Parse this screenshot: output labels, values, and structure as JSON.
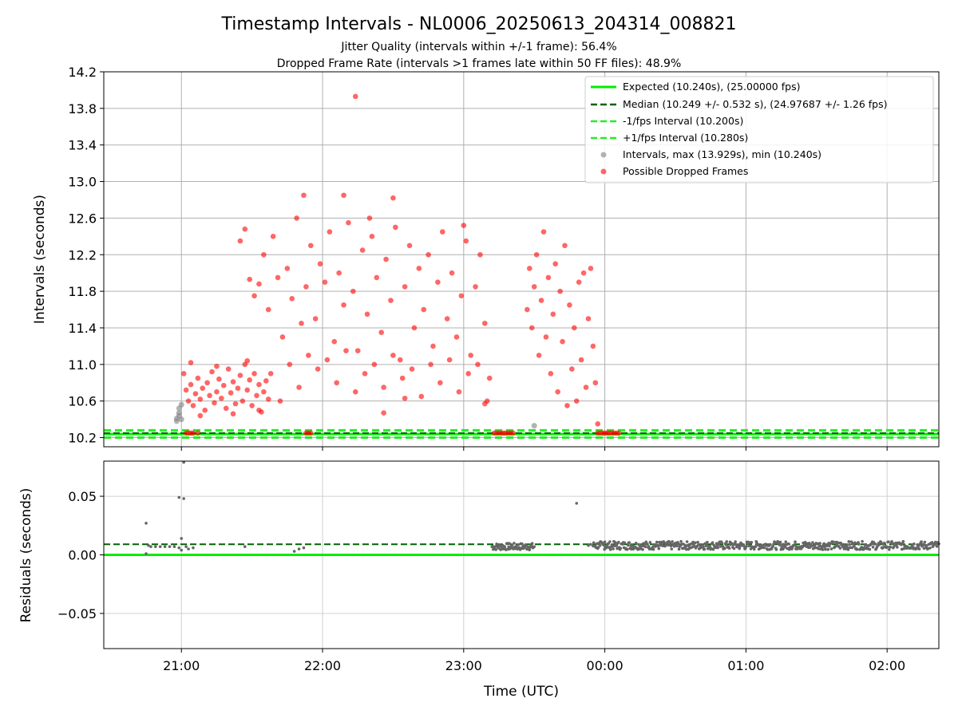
{
  "figure": {
    "title": "Timestamp Intervals - NL0006_20250613_204314_008821",
    "subtitle_1": "Jitter Quality (intervals within +/-1 frame): 56.4%",
    "subtitle_2": "Dropped Frame Rate (intervals >1 frames late within 50 FF files): 48.9%"
  },
  "colors": {
    "expected": "#00ee00",
    "median": "#006400",
    "interval_band": "#22ee22",
    "intervals_gray": "#808080",
    "dropped_red": "#ff0000",
    "grid": "#b0b0b0"
  },
  "chart_data": [
    {
      "type": "scatter",
      "panel": "top",
      "xlabel": "",
      "ylabel": "Intervals (seconds)",
      "x_unit": "time UTC (2025-06-13/14)",
      "xlim": [
        "20:27",
        "02:22"
      ],
      "ylim": [
        10.1,
        14.2
      ],
      "yticks": [
        "10.2",
        "10.6",
        "11.0",
        "11.4",
        "11.8",
        "12.2",
        "12.6",
        "13.0",
        "13.4",
        "13.8",
        "14.2"
      ],
      "grid": true,
      "legend_position": "top-right",
      "legend": [
        "Expected (10.240s), (25.00000 fps)",
        "Median (10.249 +/- 0.532 s), (24.97687 +/- 1.26 fps)",
        "-1/fps Interval (10.200s)",
        "+1/fps Interval (10.280s)",
        "Intervals, max (13.929s), min (10.240s)",
        "Possible Dropped Frames"
      ],
      "reference_lines": {
        "expected": 10.24,
        "median": 10.249,
        "minus_1_fps": 10.2,
        "plus_1_fps": 10.28
      },
      "summary": {
        "max_interval": 13.929,
        "min_interval": 10.24
      },
      "series": [
        {
          "name": "Intervals, max (13.929s), min (10.240s)",
          "points": [
            [
              "20:58",
              10.38
            ],
            [
              "20:58",
              10.41
            ],
            [
              "20:59",
              10.44
            ],
            [
              "20:59",
              10.47
            ],
            [
              "20:59",
              10.52
            ],
            [
              "21:00",
              10.56
            ],
            [
              "21:00",
              10.4
            ],
            [
              "23:30",
              10.33
            ]
          ]
        },
        {
          "name": "Possible Dropped Frames",
          "points": [
            [
              "21:01",
              10.9
            ],
            [
              "21:02",
              10.72
            ],
            [
              "21:03",
              10.6
            ],
            [
              "21:04",
              10.78
            ],
            [
              "21:05",
              10.55
            ],
            [
              "21:06",
              10.68
            ],
            [
              "21:07",
              10.85
            ],
            [
              "21:08",
              10.62
            ],
            [
              "21:09",
              10.74
            ],
            [
              "21:10",
              10.5
            ],
            [
              "21:11",
              10.8
            ],
            [
              "21:12",
              10.66
            ],
            [
              "21:13",
              10.92
            ],
            [
              "21:14",
              10.58
            ],
            [
              "21:15",
              10.7
            ],
            [
              "21:16",
              10.84
            ],
            [
              "21:17",
              10.63
            ],
            [
              "21:18",
              10.77
            ],
            [
              "21:19",
              10.52
            ],
            [
              "21:20",
              10.95
            ],
            [
              "21:21",
              10.69
            ],
            [
              "21:22",
              10.81
            ],
            [
              "21:23",
              10.57
            ],
            [
              "21:24",
              10.74
            ],
            [
              "21:25",
              10.88
            ],
            [
              "21:26",
              10.6
            ],
            [
              "21:27",
              11.0
            ],
            [
              "21:28",
              10.72
            ],
            [
              "21:29",
              10.83
            ],
            [
              "21:30",
              10.55
            ],
            [
              "21:31",
              10.9
            ],
            [
              "21:32",
              10.66
            ],
            [
              "21:33",
              10.78
            ],
            [
              "21:34",
              10.48
            ],
            [
              "21:35",
              10.7
            ],
            [
              "21:36",
              10.82
            ],
            [
              "21:37",
              10.62
            ],
            [
              "21:04",
              11.02
            ],
            [
              "21:08",
              10.44
            ],
            [
              "21:15",
              10.98
            ],
            [
              "21:22",
              10.46
            ],
            [
              "21:28",
              11.04
            ],
            [
              "21:33",
              10.5
            ],
            [
              "21:25",
              12.35
            ],
            [
              "21:27",
              12.48
            ],
            [
              "21:29",
              11.93
            ],
            [
              "21:31",
              11.75
            ],
            [
              "21:33",
              11.88
            ],
            [
              "21:35",
              12.2
            ],
            [
              "21:37",
              11.6
            ],
            [
              "21:39",
              12.4
            ],
            [
              "21:41",
              11.95
            ],
            [
              "21:43",
              11.3
            ],
            [
              "21:45",
              12.05
            ],
            [
              "21:47",
              11.72
            ],
            [
              "21:49",
              12.6
            ],
            [
              "21:51",
              11.45
            ],
            [
              "21:53",
              11.85
            ],
            [
              "21:55",
              12.3
            ],
            [
              "21:57",
              11.5
            ],
            [
              "21:59",
              12.1
            ],
            [
              "22:01",
              11.9
            ],
            [
              "22:03",
              12.45
            ],
            [
              "22:05",
              11.25
            ],
            [
              "22:07",
              12.0
            ],
            [
              "22:09",
              11.65
            ],
            [
              "22:11",
              12.55
            ],
            [
              "22:13",
              11.8
            ],
            [
              "22:15",
              11.15
            ],
            [
              "22:17",
              12.25
            ],
            [
              "22:19",
              11.55
            ],
            [
              "22:21",
              12.4
            ],
            [
              "22:23",
              11.95
            ],
            [
              "22:25",
              11.35
            ],
            [
              "22:27",
              12.15
            ],
            [
              "22:29",
              11.7
            ],
            [
              "22:31",
              12.5
            ],
            [
              "22:33",
              11.05
            ],
            [
              "22:35",
              11.85
            ],
            [
              "22:37",
              12.3
            ],
            [
              "22:39",
              11.4
            ],
            [
              "22:41",
              12.05
            ],
            [
              "22:43",
              11.6
            ],
            [
              "22:45",
              12.2
            ],
            [
              "22:47",
              11.2
            ],
            [
              "22:49",
              11.9
            ],
            [
              "22:51",
              12.45
            ],
            [
              "22:53",
              11.5
            ],
            [
              "22:55",
              12.0
            ],
            [
              "22:57",
              11.3
            ],
            [
              "22:59",
              11.75
            ],
            [
              "23:01",
              12.35
            ],
            [
              "23:03",
              11.1
            ],
            [
              "23:05",
              11.85
            ],
            [
              "23:07",
              12.2
            ],
            [
              "23:09",
              11.45
            ],
            [
              "23:11",
              10.85
            ],
            [
              "21:38",
              10.9
            ],
            [
              "21:42",
              10.6
            ],
            [
              "21:46",
              11.0
            ],
            [
              "21:50",
              10.75
            ],
            [
              "21:54",
              11.1
            ],
            [
              "21:58",
              10.95
            ],
            [
              "22:02",
              11.05
            ],
            [
              "22:06",
              10.8
            ],
            [
              "22:10",
              11.15
            ],
            [
              "22:14",
              10.7
            ],
            [
              "22:18",
              10.9
            ],
            [
              "22:22",
              11.0
            ],
            [
              "22:26",
              10.75
            ],
            [
              "22:30",
              11.1
            ],
            [
              "22:34",
              10.85
            ],
            [
              "22:38",
              10.95
            ],
            [
              "22:42",
              10.65
            ],
            [
              "22:46",
              11.0
            ],
            [
              "22:50",
              10.8
            ],
            [
              "22:54",
              11.05
            ],
            [
              "22:58",
              10.7
            ],
            [
              "23:02",
              10.9
            ],
            [
              "23:06",
              11.0
            ],
            [
              "23:10",
              10.6
            ],
            [
              "21:52",
              12.85
            ],
            [
              "22:09",
              12.85
            ],
            [
              "22:14",
              13.93
            ],
            [
              "22:30",
              12.82
            ],
            [
              "22:20",
              12.6
            ],
            [
              "23:00",
              12.52
            ],
            [
              "22:26",
              10.47
            ],
            [
              "22:35",
              10.63
            ],
            [
              "23:09",
              10.57
            ],
            [
              "23:27",
              11.6
            ],
            [
              "23:28",
              12.05
            ],
            [
              "23:29",
              11.4
            ],
            [
              "23:30",
              11.85
            ],
            [
              "23:31",
              12.2
            ],
            [
              "23:32",
              11.1
            ],
            [
              "23:33",
              11.7
            ],
            [
              "23:34",
              12.45
            ],
            [
              "23:35",
              11.3
            ],
            [
              "23:36",
              11.95
            ],
            [
              "23:37",
              10.9
            ],
            [
              "23:38",
              11.55
            ],
            [
              "23:39",
              12.1
            ],
            [
              "23:40",
              10.7
            ],
            [
              "23:41",
              11.8
            ],
            [
              "23:42",
              11.25
            ],
            [
              "23:43",
              12.3
            ],
            [
              "23:44",
              10.55
            ],
            [
              "23:45",
              11.65
            ],
            [
              "23:46",
              10.95
            ],
            [
              "23:47",
              11.4
            ],
            [
              "23:48",
              10.6
            ],
            [
              "23:49",
              11.9
            ],
            [
              "23:50",
              11.05
            ],
            [
              "23:51",
              12.0
            ],
            [
              "23:52",
              10.75
            ],
            [
              "23:53",
              11.5
            ],
            [
              "23:54",
              12.05
            ],
            [
              "23:55",
              11.2
            ],
            [
              "23:56",
              10.8
            ],
            [
              "23:57",
              10.35
            ],
            [
              "21:02",
              10.25
            ],
            [
              "21:03",
              10.25
            ],
            [
              "21:04",
              10.25
            ],
            [
              "21:05",
              10.25
            ],
            [
              "21:07",
              10.25
            ],
            [
              "21:53",
              10.25
            ],
            [
              "21:54",
              10.25
            ],
            [
              "21:55",
              10.25
            ],
            [
              "23:13",
              10.25
            ],
            [
              "23:14",
              10.25
            ],
            [
              "23:15",
              10.25
            ],
            [
              "23:16",
              10.25
            ],
            [
              "23:17",
              10.25
            ],
            [
              "23:18",
              10.25
            ],
            [
              "23:19",
              10.25
            ],
            [
              "23:20",
              10.25
            ],
            [
              "23:21",
              10.25
            ],
            [
              "23:57",
              10.25
            ],
            [
              "23:58",
              10.25
            ],
            [
              "23:59",
              10.25
            ],
            [
              "00:00",
              10.25
            ],
            [
              "00:01",
              10.25
            ],
            [
              "00:02",
              10.25
            ],
            [
              "00:03",
              10.25
            ],
            [
              "00:04",
              10.25
            ],
            [
              "00:05",
              10.25
            ],
            [
              "00:06",
              10.25
            ]
          ]
        }
      ]
    },
    {
      "type": "scatter",
      "panel": "bottom",
      "xlabel": "Time (UTC)",
      "ylabel": "Residuals (seconds)",
      "xticks": [
        "21:00",
        "22:00",
        "23:00",
        "00:00",
        "01:00",
        "02:00"
      ],
      "xlim": [
        "20:27",
        "02:22"
      ],
      "ylim": [
        -0.08,
        0.08
      ],
      "yticks": [
        "0.05",
        "0.00",
        "−0.05"
      ],
      "grid": true,
      "reference_lines": {
        "zero": 0.0,
        "median_offset": 0.009
      },
      "series": [
        {
          "name": "residuals",
          "points": [
            [
              "20:45",
              0.027
            ],
            [
              "20:45",
              0.001
            ],
            [
              "20:46",
              0.008
            ],
            [
              "20:47",
              0.007
            ],
            [
              "20:49",
              0.007
            ],
            [
              "20:51",
              0.007
            ],
            [
              "20:53",
              0.007
            ],
            [
              "20:55",
              0.007
            ],
            [
              "20:57",
              0.007
            ],
            [
              "20:59",
              0.006
            ],
            [
              "20:59",
              0.049
            ],
            [
              "21:01",
              0.048
            ],
            [
              "21:01",
              0.079
            ],
            [
              "21:00",
              0.014
            ],
            [
              "21:00",
              0.004
            ],
            [
              "21:02",
              0.007
            ],
            [
              "21:03",
              0.005
            ],
            [
              "21:05",
              0.006
            ],
            [
              "21:27",
              0.007
            ],
            [
              "21:48",
              0.003
            ],
            [
              "21:50",
              0.005
            ],
            [
              "21:52",
              0.006
            ],
            [
              "23:48",
              0.044
            ],
            [
              "23:53",
              0.008
            ],
            [
              "23:54",
              0.009
            ],
            [
              "23:56",
              0.007
            ],
            [
              "23:58",
              0.008
            ],
            [
              "00:00",
              0.011
            ],
            [
              "00:02",
              0.006
            ]
          ],
          "dense_bands": [
            {
              "x_start": "23:12",
              "x_end": "23:30",
              "center": 0.007,
              "spread": 0.006
            },
            {
              "x_start": "23:55",
              "x_end": "02:22",
              "center": 0.008,
              "spread": 0.007
            }
          ]
        }
      ]
    }
  ]
}
